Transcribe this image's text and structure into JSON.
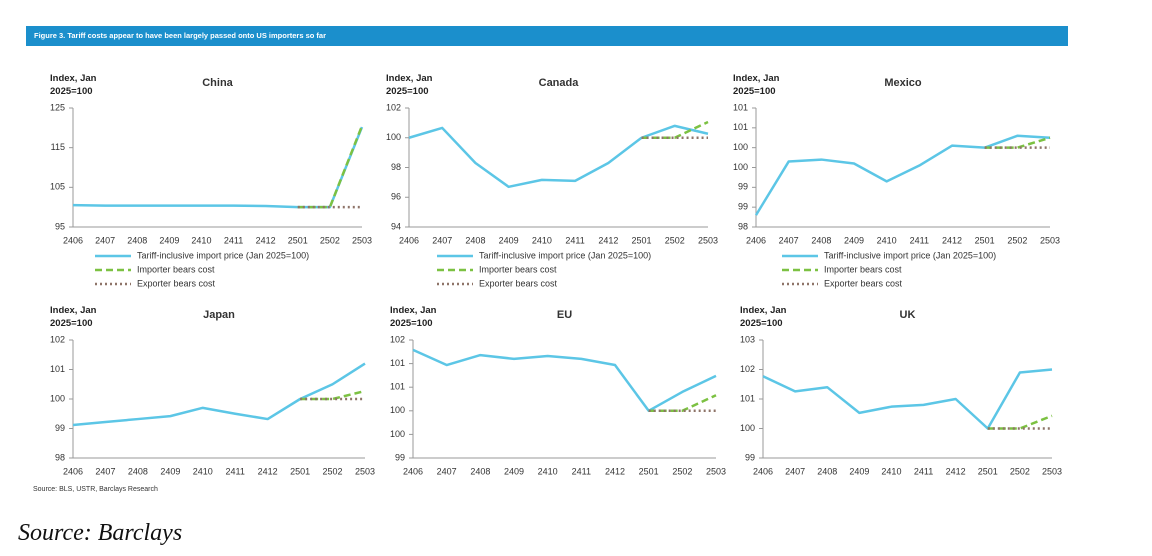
{
  "header": "Figure 3. Tariff costs appear to have been largely passed onto US importers so far",
  "note": "Source: BLS, USTR, Barclays Research",
  "caption": "Source: Barclays",
  "chart_data": [
    {
      "type": "line",
      "title": "China",
      "y_label": "Index, Jan 2025=100",
      "legend": "bottom",
      "categories": [
        "2406",
        "2407",
        "2408",
        "2409",
        "2410",
        "2411",
        "2412",
        "2501",
        "2502",
        "2503"
      ],
      "ylim": [
        95,
        125
      ],
      "yticks": [
        95,
        105,
        115,
        125
      ],
      "series": [
        {
          "name": "Tariff-inclusive import price (Jan 2025=100)",
          "color": "#5cc6e6",
          "line_style": "solid",
          "values": [
            100.5,
            100.4,
            100.4,
            100.4,
            100.4,
            100.4,
            100.3,
            100,
            100,
            120.2
          ]
        },
        {
          "name": "Importer bears cost",
          "color": "#7cc142",
          "line_style": "dashed",
          "values": [
            null,
            null,
            null,
            null,
            null,
            null,
            null,
            100,
            100,
            120.5
          ]
        },
        {
          "name": "Exporter bears cost",
          "color": "#8e7468",
          "line_style": "dotted",
          "values": [
            null,
            null,
            null,
            null,
            null,
            null,
            null,
            100,
            100,
            100
          ]
        }
      ]
    },
    {
      "type": "line",
      "title": "Canada",
      "y_label": "Index, Jan 2025=100",
      "legend": "bottom",
      "categories": [
        "2406",
        "2407",
        "2408",
        "2409",
        "2410",
        "2411",
        "2412",
        "2501",
        "2502",
        "2503"
      ],
      "ylim": [
        94,
        102
      ],
      "yticks": [
        94,
        96,
        98,
        100,
        102
      ],
      "series": [
        {
          "name": "Tariff-inclusive import price (Jan 2025=100)",
          "color": "#5cc6e6",
          "line_style": "solid",
          "values": [
            100,
            100.66,
            98.3,
            96.7,
            97.17,
            97.1,
            98.3,
            100,
            100.8,
            100.27
          ]
        },
        {
          "name": "Importer bears cost",
          "color": "#7cc142",
          "line_style": "dashed",
          "values": [
            null,
            null,
            null,
            null,
            null,
            null,
            null,
            100,
            100,
            101.06
          ]
        },
        {
          "name": "Exporter bears cost",
          "color": "#8e7468",
          "line_style": "dotted",
          "values": [
            null,
            null,
            null,
            null,
            null,
            null,
            null,
            100,
            100,
            100
          ]
        }
      ]
    },
    {
      "type": "line",
      "title": "Mexico",
      "y_label": "Index, Jan 2025=100",
      "legend": "bottom",
      "categories": [
        "2406",
        "2407",
        "2408",
        "2409",
        "2410",
        "2411",
        "2412",
        "2501",
        "2502",
        "2503"
      ],
      "ylim": [
        98,
        101
      ],
      "yticks": [
        98,
        {
          "value": 98.5,
          "label": "99"
        },
        99,
        {
          "value": 99.5,
          "label": "100"
        },
        100,
        {
          "value": 100.5,
          "label": "101"
        },
        101
      ],
      "series": [
        {
          "name": "Tariff-inclusive import price (Jan 2025=100)",
          "color": "#5cc6e6",
          "line_style": "solid",
          "values": [
            98.3,
            99.65,
            99.7,
            99.6,
            99.15,
            99.55,
            100.05,
            100,
            100.3,
            100.25
          ]
        },
        {
          "name": "Importer bears cost",
          "color": "#7cc142",
          "line_style": "dashed",
          "values": [
            null,
            null,
            null,
            null,
            null,
            null,
            null,
            100,
            100,
            100.25
          ]
        },
        {
          "name": "Exporter bears cost",
          "color": "#8e7468",
          "line_style": "dotted",
          "values": [
            null,
            null,
            null,
            null,
            null,
            null,
            null,
            100,
            100,
            100
          ]
        }
      ]
    },
    {
      "type": "line",
      "title": "Japan",
      "y_label": "Index, Jan 2025=100",
      "categories": [
        "2406",
        "2407",
        "2408",
        "2409",
        "2410",
        "2411",
        "2412",
        "2501",
        "2502",
        "2503"
      ],
      "ylim": [
        98,
        102
      ],
      "yticks": [
        98,
        99,
        100,
        101,
        102
      ],
      "series": [
        {
          "color": "#5cc6e6",
          "line_style": "solid",
          "values": [
            99.12,
            99.22,
            99.32,
            99.42,
            99.7,
            99.5,
            99.32,
            100,
            100.5,
            101.2
          ]
        },
        {
          "color": "#7cc142",
          "line_style": "dashed",
          "values": [
            null,
            null,
            null,
            null,
            null,
            null,
            null,
            100,
            100,
            100.27
          ]
        },
        {
          "color": "#8e7468",
          "line_style": "dotted",
          "values": [
            null,
            null,
            null,
            null,
            null,
            null,
            null,
            100,
            100,
            100
          ]
        }
      ]
    },
    {
      "type": "line",
      "title": "EU",
      "y_label": "Index, Jan 2025=100",
      "categories": [
        "2406",
        "2407",
        "2408",
        "2409",
        "2410",
        "2411",
        "2412",
        "2501",
        "2502",
        "2503"
      ],
      "ylim": [
        99,
        101.5
      ],
      "yticks": [
        99,
        {
          "value": 99.5,
          "label": "100"
        },
        100,
        {
          "value": 100.5,
          "label": "101"
        },
        101,
        {
          "value": 101.5,
          "label": "102"
        }
      ],
      "series": [
        {
          "color": "#5cc6e6",
          "line_style": "solid",
          "values": [
            101.29,
            100.97,
            101.18,
            101.1,
            101.16,
            101.1,
            100.97,
            100,
            100.4,
            100.74
          ]
        },
        {
          "color": "#7cc142",
          "line_style": "dashed",
          "values": [
            null,
            null,
            null,
            null,
            null,
            null,
            null,
            100,
            100,
            100.33
          ]
        },
        {
          "color": "#8e7468",
          "line_style": "dotted",
          "values": [
            null,
            null,
            null,
            null,
            null,
            null,
            null,
            100,
            100,
            100
          ]
        }
      ]
    },
    {
      "type": "line",
      "title": "UK",
      "y_label": "Index, Jan 2025=100",
      "categories": [
        "2406",
        "2407",
        "2408",
        "2409",
        "2410",
        "2411",
        "2412",
        "2501",
        "2502",
        "2503"
      ],
      "ylim": [
        99,
        103
      ],
      "yticks": [
        99,
        100,
        101,
        102,
        103
      ],
      "series": [
        {
          "color": "#5cc6e6",
          "line_style": "solid",
          "values": [
            101.77,
            101.26,
            101.4,
            100.53,
            100.74,
            100.8,
            101,
            100,
            101.9,
            102
          ]
        },
        {
          "color": "#7cc142",
          "line_style": "dashed",
          "values": [
            null,
            null,
            null,
            null,
            null,
            null,
            null,
            100,
            100,
            100.43
          ]
        },
        {
          "color": "#8e7468",
          "line_style": "dotted",
          "values": [
            null,
            null,
            null,
            null,
            null,
            null,
            null,
            100,
            100,
            100
          ]
        }
      ]
    }
  ]
}
